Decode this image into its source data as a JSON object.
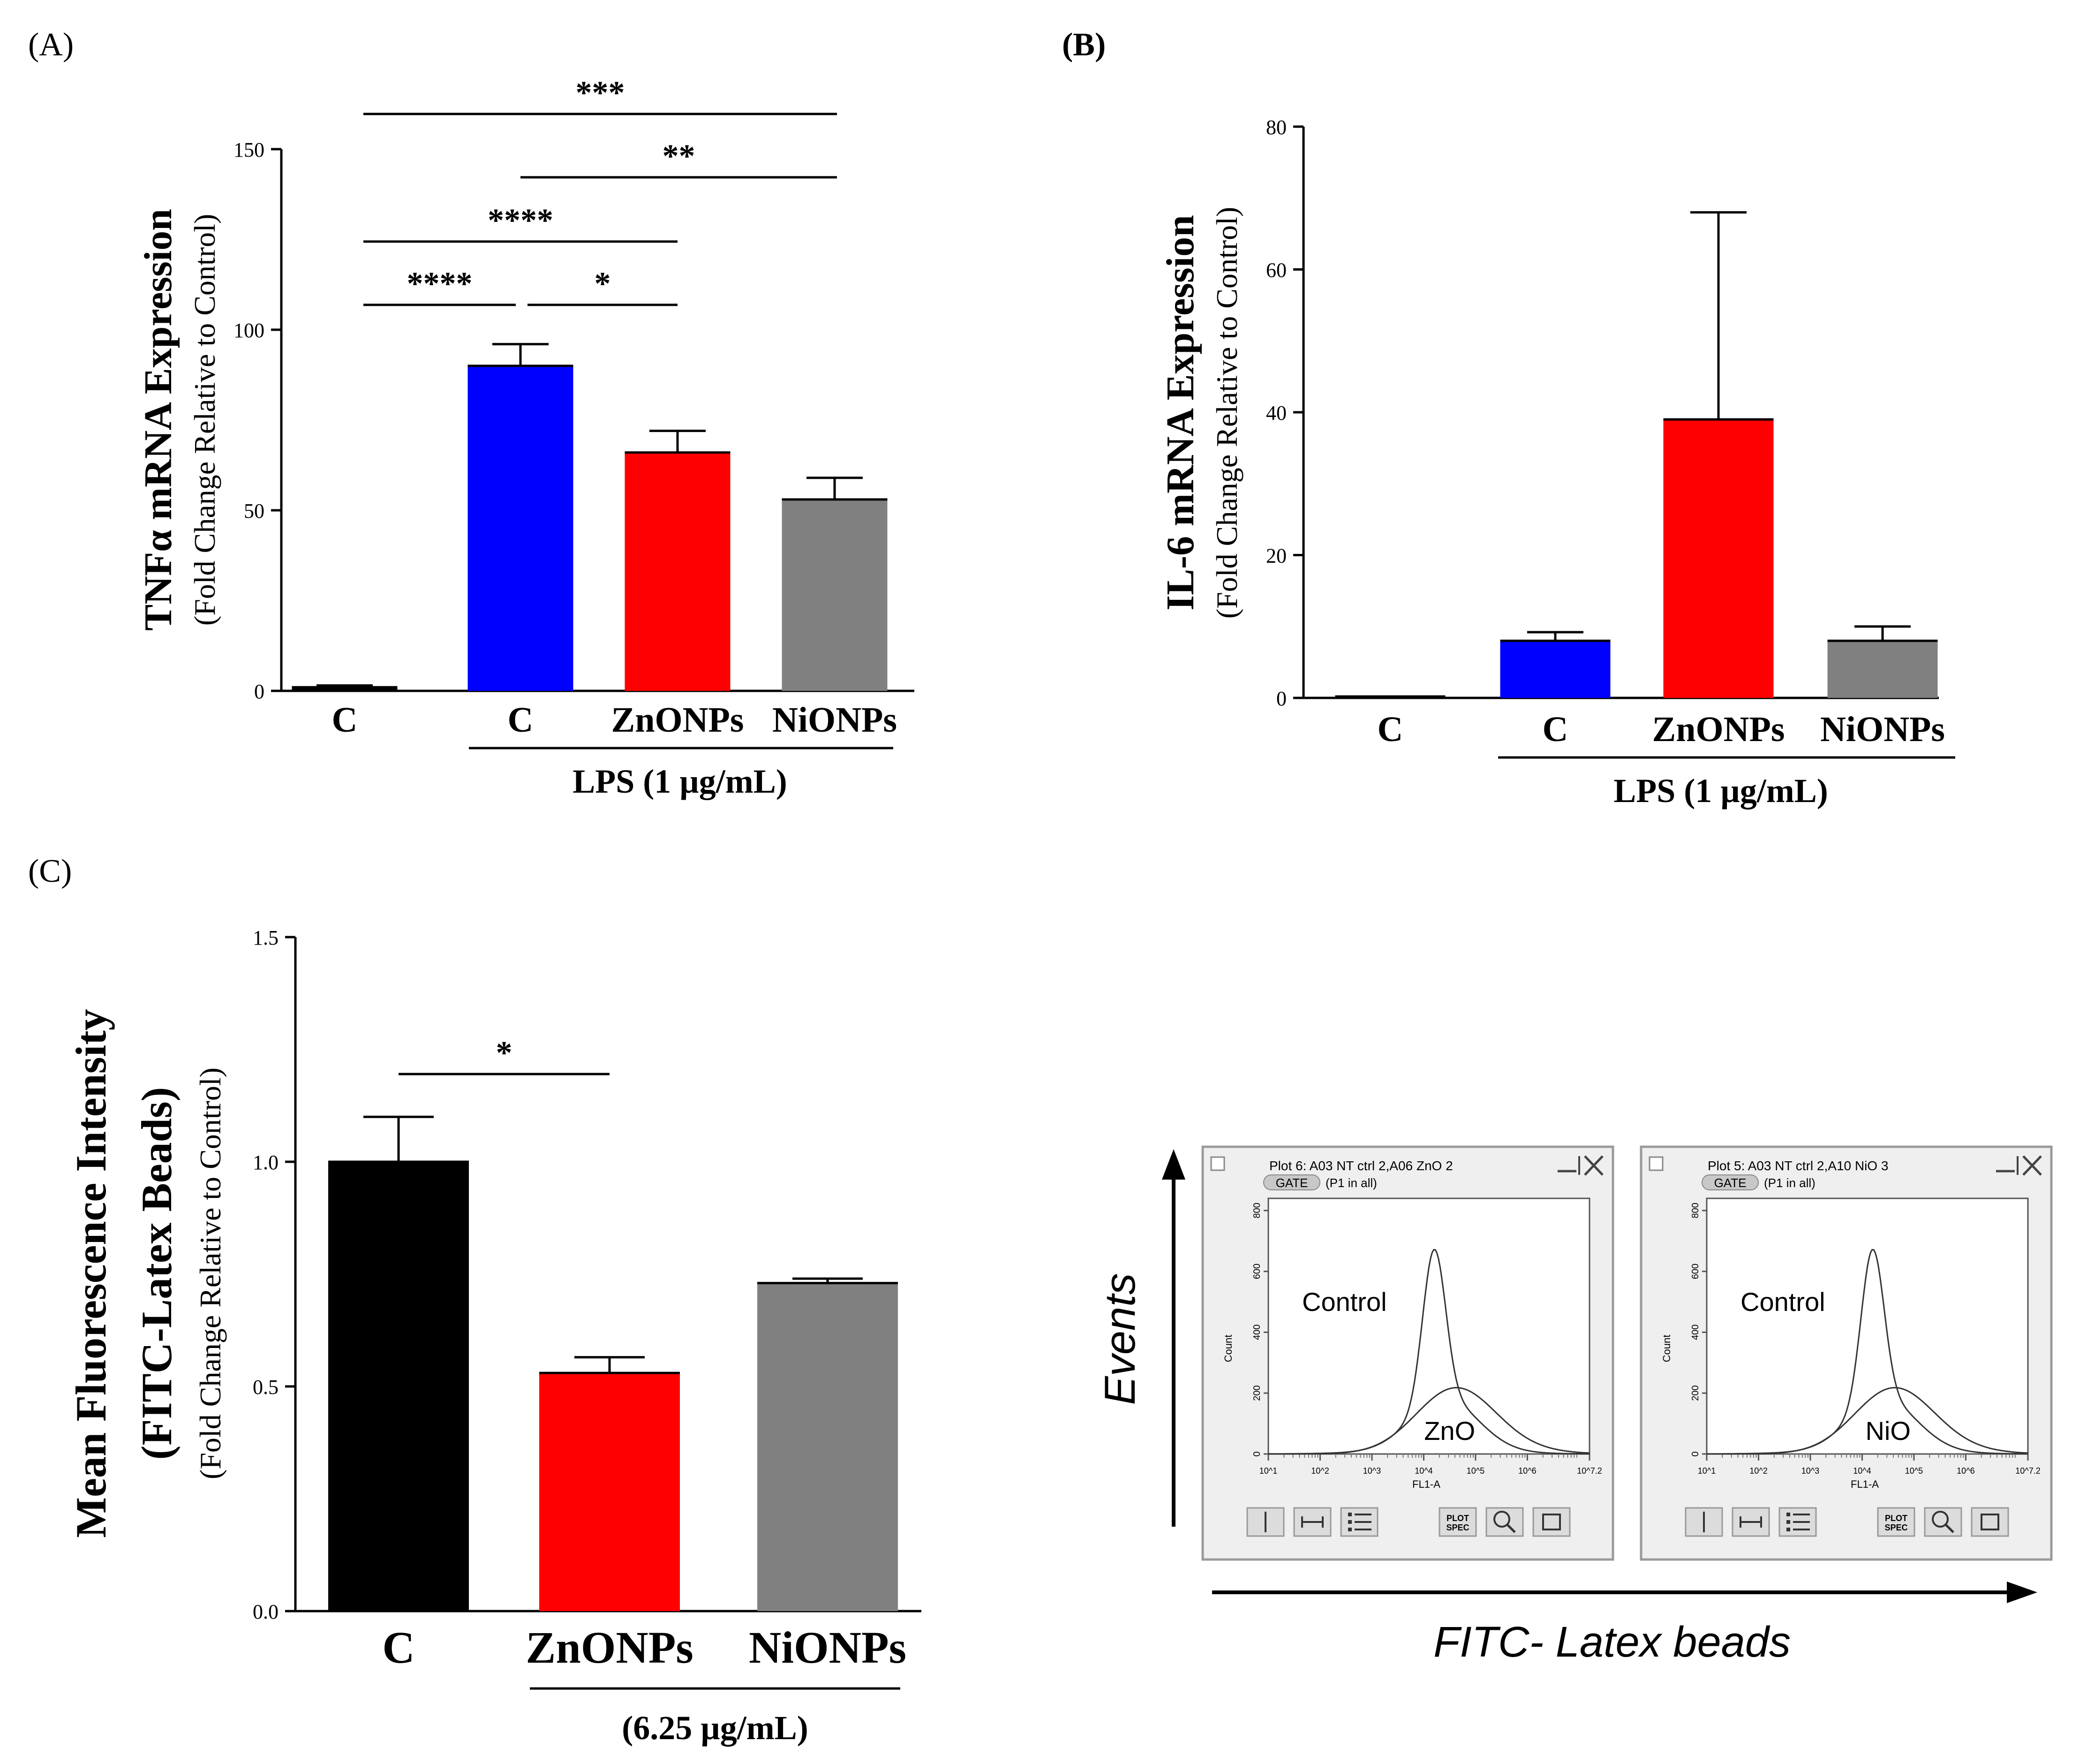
{
  "panels": {
    "A": "(A)",
    "B": "(B)",
    "C": "(C)"
  },
  "colors": {
    "control": "#000000",
    "lps": "#0000ff",
    "zno": "#ff0000",
    "nio": "#808080",
    "window_bg": "#efefef",
    "window_border": "#9a9a9a"
  },
  "chart_data": [
    {
      "id": "A",
      "type": "bar",
      "ylabel": "TNFα mRNA Expression",
      "ylabel_sub": "(Fold Change Relative to Control)",
      "categories": [
        "C",
        "C",
        "ZnONPs",
        "NiONPs"
      ],
      "group_label": "LPS (1 µg/mL)",
      "values": [
        1,
        90,
        66,
        53
      ],
      "errors": [
        0.5,
        6,
        6,
        6
      ],
      "ylim": [
        0,
        150
      ],
      "yticks": [
        "0",
        "50",
        "100",
        "150"
      ],
      "significance": [
        {
          "from": 0,
          "to": 3,
          "label": "***"
        },
        {
          "from": 1,
          "to": 3,
          "label": "**"
        },
        {
          "from": 0,
          "to": 2,
          "label": "****"
        },
        {
          "from": 0,
          "to": 1,
          "label": "****"
        },
        {
          "from": 1,
          "to": 2,
          "label": "*"
        }
      ]
    },
    {
      "id": "B",
      "type": "bar",
      "ylabel": "IL-6 mRNA Expression",
      "ylabel_sub": "(Fold Change Relative to Control)",
      "categories": [
        "C",
        "C",
        "ZnONPs",
        "NiONPs"
      ],
      "group_label": "LPS (1 µg/mL)",
      "values": [
        0.2,
        8,
        39,
        8
      ],
      "errors": [
        0,
        1.2,
        29,
        2
      ],
      "ylim": [
        0,
        80
      ],
      "yticks": [
        "0",
        "20",
        "40",
        "60",
        "80"
      ],
      "significance": []
    },
    {
      "id": "C",
      "type": "bar",
      "ylabel": "Mean Fluorescence Intensity",
      "ylabel_mid": "(FITC-Latex Beads)",
      "ylabel_sub": "(Fold Change Relative to Control)",
      "categories": [
        "C",
        "ZnONPs",
        "NiONPs"
      ],
      "group_label": "(6.25 µg/mL)",
      "values": [
        1.0,
        0.53,
        0.73
      ],
      "errors": [
        0.1,
        0.035,
        0.01
      ],
      "ylim": [
        0,
        1.5
      ],
      "yticks": [
        "0.0",
        "0.5",
        "1.0",
        "1.5"
      ],
      "significance": [
        {
          "from": 0,
          "to": 1,
          "label": "*"
        }
      ]
    }
  ],
  "flow": {
    "y_axis_label": "Events",
    "x_axis_label": "FITC- Latex beads",
    "plots": [
      {
        "title": "Plot 6: A03 NT ctrl 2,A06 ZnO 2",
        "gate": "GATE",
        "gate_info": "(P1 in all)",
        "y_title": "Count",
        "x_title": "FL1-A",
        "yticks": [
          "0",
          "200",
          "400",
          "600",
          "800"
        ],
        "xticks": [
          "10^1",
          "10^2",
          "10^3",
          "10^4",
          "10^5",
          "10^6",
          "10^7.2"
        ],
        "control_label": "Control",
        "treatment_label": "ZnO",
        "toolbar": [
          "PLOT SPEC"
        ]
      },
      {
        "title": "Plot 5: A03 NT ctrl 2,A10 NiO 3",
        "gate": "GATE",
        "gate_info": "(P1 in all)",
        "y_title": "Count",
        "x_title": "FL1-A",
        "yticks": [
          "0",
          "200",
          "400",
          "600",
          "800"
        ],
        "xticks": [
          "10^1",
          "10^2",
          "10^3",
          "10^4",
          "10^5",
          "10^6",
          "10^7.2"
        ],
        "control_label": "Control",
        "treatment_label": "NiO",
        "toolbar": [
          "PLOT SPEC"
        ]
      }
    ]
  }
}
